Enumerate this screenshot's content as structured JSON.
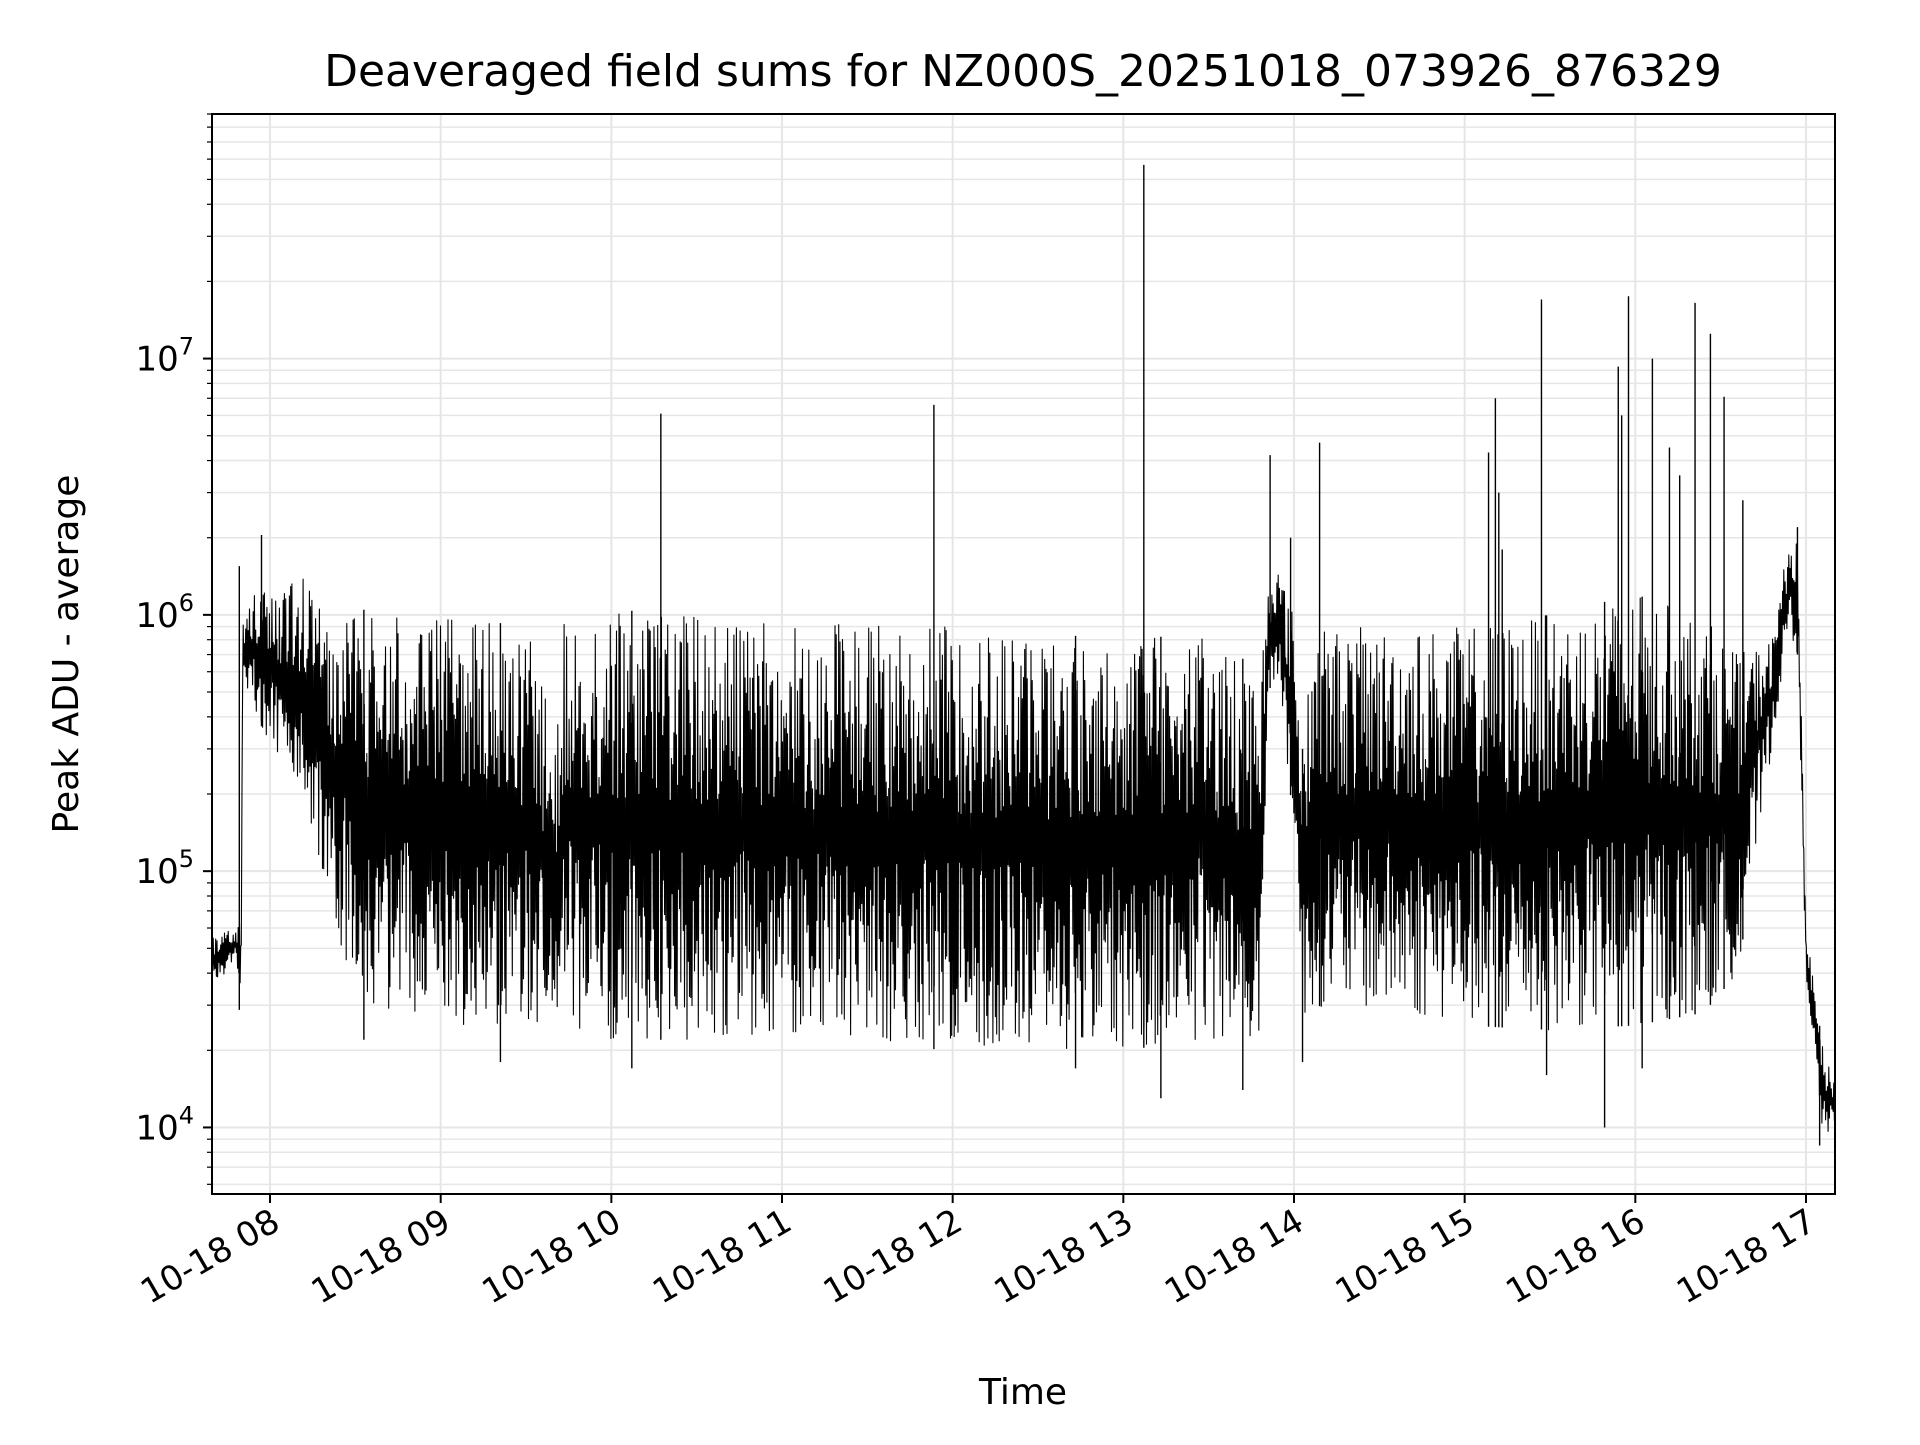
{
  "chart_data": {
    "type": "line",
    "title": "Deaveraged field sums for NZ000S_20251018_073926_876329",
    "xlabel": "Time",
    "ylabel": "Peak ADU - average",
    "yscale": "log",
    "grid": true,
    "line_color": "#000000",
    "grid_color": "#e6e6e6",
    "xlim": [
      7.66,
      17.17
    ],
    "ylim": [
      5500,
      90000000
    ],
    "x_ticks": [
      {
        "value": 8,
        "label": "10-18 08"
      },
      {
        "value": 9,
        "label": "10-18 09"
      },
      {
        "value": 10,
        "label": "10-18 10"
      },
      {
        "value": 11,
        "label": "10-18 11"
      },
      {
        "value": 12,
        "label": "10-18 12"
      },
      {
        "value": 13,
        "label": "10-18 13"
      },
      {
        "value": 14,
        "label": "10-18 14"
      },
      {
        "value": 15,
        "label": "10-18 15"
      },
      {
        "value": 16,
        "label": "10-18 16"
      },
      {
        "value": 17,
        "label": "10-18 17"
      }
    ],
    "y_ticks": [
      {
        "value": 10000,
        "base": "10",
        "exp": "4"
      },
      {
        "value": 100000,
        "base": "10",
        "exp": "5"
      },
      {
        "value": 1000000,
        "base": "10",
        "exp": "6"
      },
      {
        "value": 10000000,
        "base": "10",
        "exp": "7"
      }
    ],
    "envelope": {
      "x": [
        7.66,
        7.8,
        7.83,
        7.84,
        7.9,
        8.0,
        8.2,
        8.4,
        8.6,
        9.0,
        9.5,
        9.7,
        9.72,
        10.0,
        10.5,
        11.0,
        11.5,
        12.0,
        12.5,
        13.0,
        13.5,
        13.8,
        13.85,
        13.9,
        14.0,
        14.05,
        14.1,
        14.5,
        15.0,
        15.5,
        16.0,
        16.4,
        16.6,
        16.8,
        16.9,
        16.95,
        17.0,
        17.1,
        17.17
      ],
      "high": [
        55000,
        60000,
        80000,
        900000,
        1300000,
        1200000,
        1400000,
        1200000,
        1000000,
        1000000,
        900000,
        350000,
        1100000,
        1050000,
        1000000,
        950000,
        950000,
        900000,
        850000,
        800000,
        850000,
        600000,
        1400000,
        1600000,
        1000000,
        300000,
        900000,
        900000,
        900000,
        1000000,
        1200000,
        1000000,
        700000,
        800000,
        2000000,
        1900000,
        60000,
        20000,
        15000
      ],
      "low": [
        35000,
        45000,
        23000,
        500000,
        450000,
        300000,
        200000,
        50000,
        30000,
        25000,
        25000,
        25000,
        25000,
        22000,
        22000,
        22000,
        21000,
        20000,
        20000,
        20000,
        22000,
        20000,
        500000,
        600000,
        150000,
        25000,
        30000,
        28000,
        25000,
        24000,
        25000,
        28000,
        40000,
        300000,
        900000,
        700000,
        40000,
        9000,
        10000
      ]
    },
    "spikes": [
      {
        "x": 7.82,
        "value": 1550000
      },
      {
        "x": 7.95,
        "value": 2050000
      },
      {
        "x": 10.29,
        "value": 6100000
      },
      {
        "x": 11.89,
        "value": 6600000
      },
      {
        "x": 13.12,
        "value": 57000000
      },
      {
        "x": 13.86,
        "value": 4200000
      },
      {
        "x": 13.98,
        "value": 2000000
      },
      {
        "x": 14.15,
        "value": 4700000
      },
      {
        "x": 15.14,
        "value": 4300000
      },
      {
        "x": 15.2,
        "value": 3000000
      },
      {
        "x": 15.18,
        "value": 7000000
      },
      {
        "x": 15.22,
        "value": 1800000
      },
      {
        "x": 15.45,
        "value": 17000000
      },
      {
        "x": 15.9,
        "value": 9300000
      },
      {
        "x": 15.92,
        "value": 6000000
      },
      {
        "x": 15.96,
        "value": 17500000
      },
      {
        "x": 16.1,
        "value": 10000000
      },
      {
        "x": 16.2,
        "value": 4500000
      },
      {
        "x": 16.26,
        "value": 3500000
      },
      {
        "x": 16.35,
        "value": 16500000
      },
      {
        "x": 16.44,
        "value": 12500000
      },
      {
        "x": 16.52,
        "value": 7100000
      },
      {
        "x": 16.63,
        "value": 2800000
      },
      {
        "x": 16.95,
        "value": 2200000
      }
    ],
    "dips": [
      {
        "x": 8.55,
        "value": 22000
      },
      {
        "x": 9.35,
        "value": 18000
      },
      {
        "x": 10.12,
        "value": 17000
      },
      {
        "x": 12.72,
        "value": 17000
      },
      {
        "x": 13.22,
        "value": 13000
      },
      {
        "x": 13.7,
        "value": 14000
      },
      {
        "x": 14.05,
        "value": 18000
      },
      {
        "x": 15.48,
        "value": 16000
      },
      {
        "x": 15.82,
        "value": 10000
      },
      {
        "x": 16.04,
        "value": 17000
      },
      {
        "x": 17.08,
        "value": 8500
      }
    ]
  }
}
